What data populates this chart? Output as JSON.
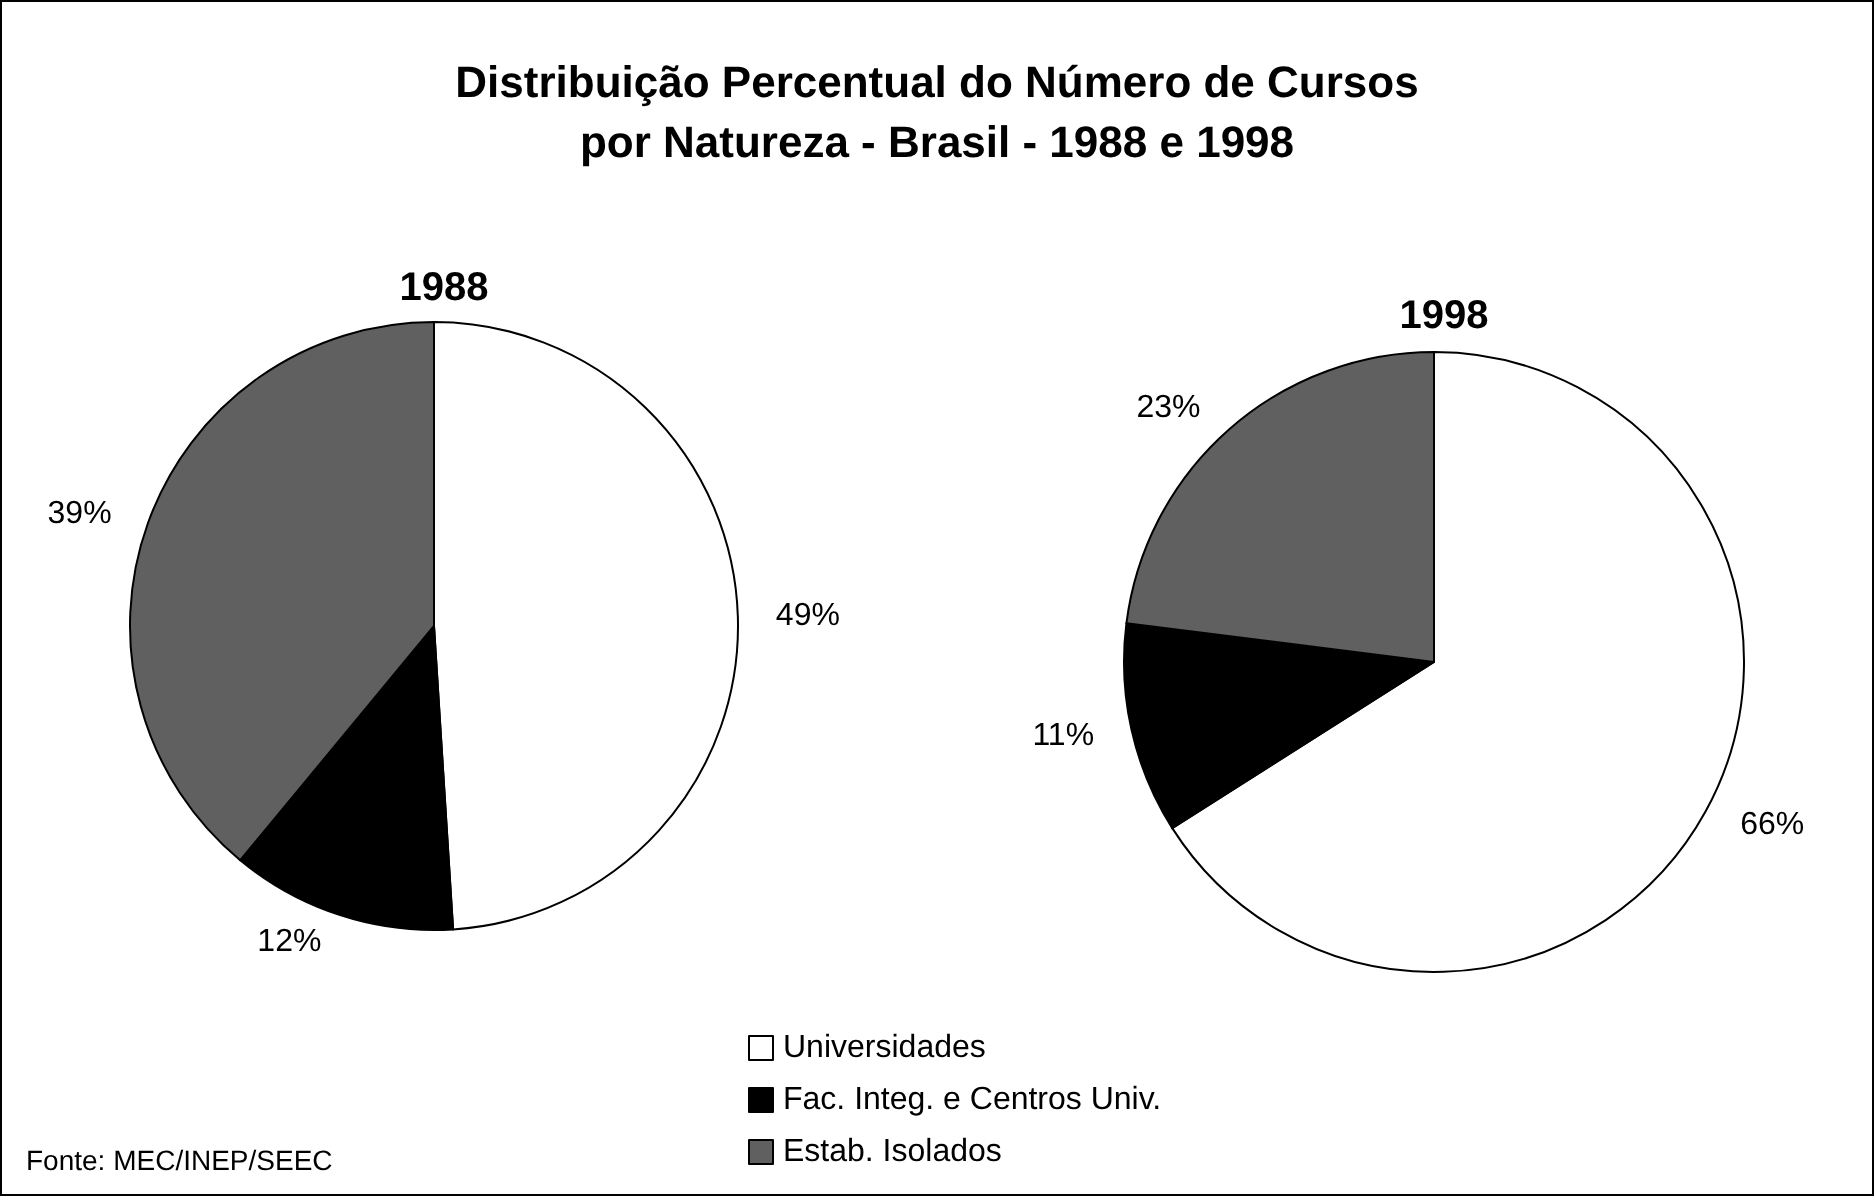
{
  "chart_data": {
    "type": "pie",
    "title": "Distribuição Percentual do Número de Cursos\npor Natureza - Brasil - 1988 e 1998",
    "categories": [
      "Universidades",
      "Fac. Integ. e Centros Univ.",
      "Estab. Isolados"
    ],
    "colors": [
      "#ffffff",
      "#000000",
      "#606060"
    ],
    "legend": "bottom",
    "annotations": [
      "Fonte: MEC/INEP/SEEC"
    ],
    "series": [
      {
        "name": "1988",
        "values": [
          49,
          12,
          39
        ],
        "value_labels": [
          "49%",
          "12%",
          "39%"
        ]
      },
      {
        "name": "1998",
        "values": [
          66,
          11,
          23
        ],
        "value_labels": [
          "66%",
          "11%",
          "23%"
        ]
      }
    ]
  }
}
